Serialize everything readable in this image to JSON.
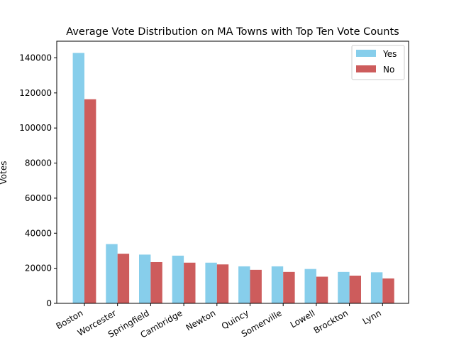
{
  "chart_data": {
    "type": "bar",
    "title": "Average Vote Distribution on MA Towns with Top Ten Vote Counts",
    "xlabel": "",
    "ylabel": "Votes",
    "categories": [
      "Boston",
      "Worcester",
      "Springfield",
      "Cambridge",
      "Newton",
      "Quincy",
      "Somerville",
      "Lowell",
      "Brockton",
      "Lynn"
    ],
    "series": [
      {
        "name": "Yes",
        "color": "#87ceeb",
        "values": [
          142800,
          33800,
          27800,
          27200,
          23200,
          21100,
          21100,
          19600,
          17900,
          17700
        ]
      },
      {
        "name": "No",
        "color": "#cd5c5c",
        "values": [
          116400,
          28300,
          23500,
          23200,
          22200,
          19100,
          17900,
          15200,
          15800,
          14200
        ]
      }
    ],
    "ylim": [
      0,
      149500
    ],
    "yticks": [
      0,
      20000,
      40000,
      60000,
      80000,
      100000,
      120000,
      140000
    ],
    "ytick_labels": [
      "0",
      "20000",
      "40000",
      "60000",
      "80000",
      "100000",
      "120000",
      "140000"
    ],
    "legend_position": "upper right",
    "grid": false
  }
}
